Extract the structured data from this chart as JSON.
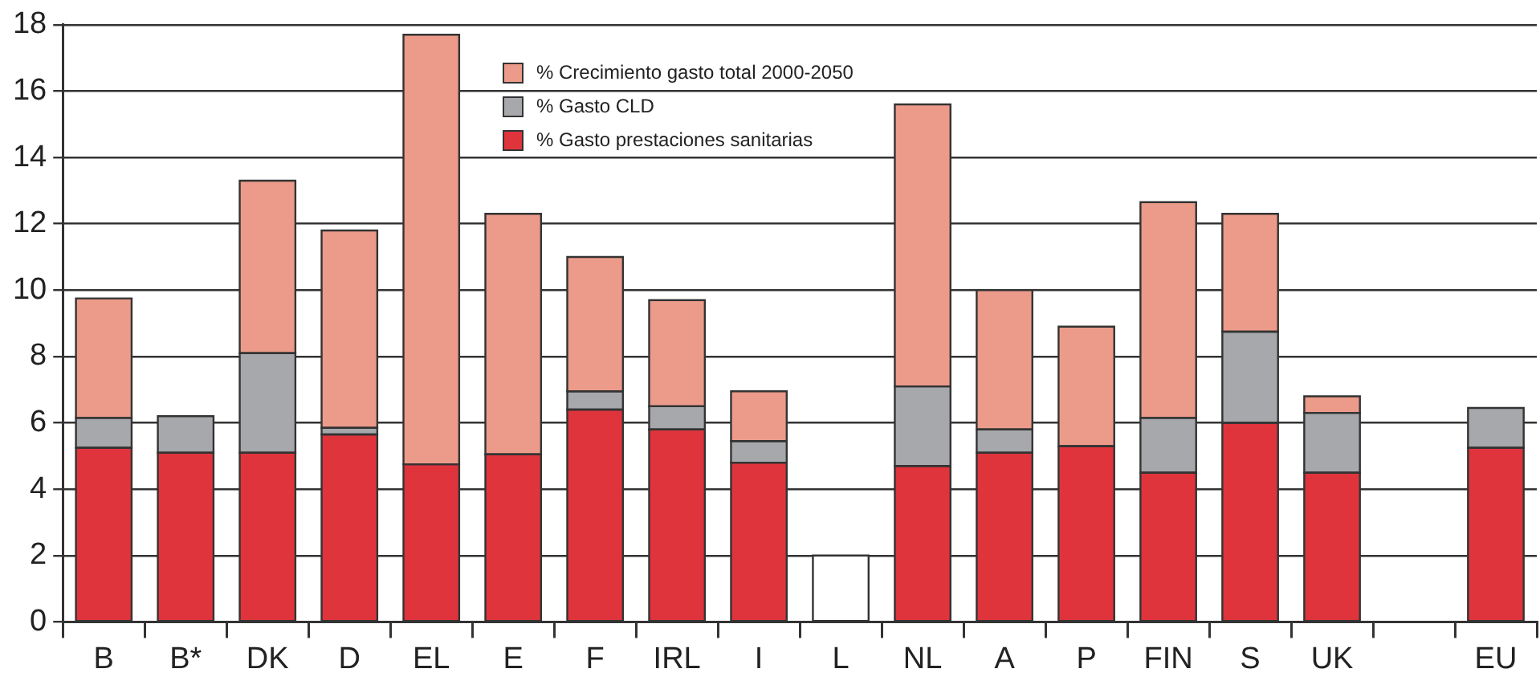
{
  "chart_data": {
    "type": "bar",
    "stacked": true,
    "categories": [
      "B",
      "B*",
      "DK",
      "D",
      "EL",
      "E",
      "F",
      "IRL",
      "I",
      "L",
      "NL",
      "A",
      "P",
      "FIN",
      "S",
      "UK",
      null,
      "EU"
    ],
    "series": [
      {
        "name": "% Gasto prestaciones sanitarias",
        "color": "#e0343c",
        "values": [
          5.25,
          5.1,
          5.1,
          5.65,
          4.75,
          5.05,
          6.4,
          5.8,
          4.8,
          null,
          4.7,
          5.1,
          5.3,
          4.5,
          6.0,
          4.5,
          null,
          5.25
        ]
      },
      {
        "name": "% Gasto CLD",
        "color": "#a7a8ab",
        "values": [
          0.9,
          1.1,
          3.0,
          0.2,
          null,
          null,
          0.55,
          0.7,
          0.65,
          null,
          2.4,
          0.7,
          null,
          1.65,
          2.75,
          1.8,
          null,
          1.2
        ]
      },
      {
        "name": "% Crecimiento gasto total 2000-2050",
        "color": "#ec9b8a",
        "values": [
          3.6,
          null,
          5.2,
          5.95,
          12.95,
          7.25,
          4.05,
          3.2,
          1.5,
          null,
          8.5,
          4.2,
          3.6,
          6.5,
          3.55,
          0.5,
          null,
          null
        ]
      },
      {
        "color": "#ffffff",
        "values": [
          null,
          null,
          null,
          null,
          null,
          null,
          null,
          null,
          null,
          2,
          null,
          null,
          null,
          null,
          null,
          null,
          null,
          null
        ]
      }
    ],
    "ylim": [
      0,
      18
    ],
    "yticks": [
      0,
      2,
      4,
      6,
      8,
      10,
      12,
      14,
      16,
      18
    ],
    "grid": "y",
    "legend": "top"
  }
}
